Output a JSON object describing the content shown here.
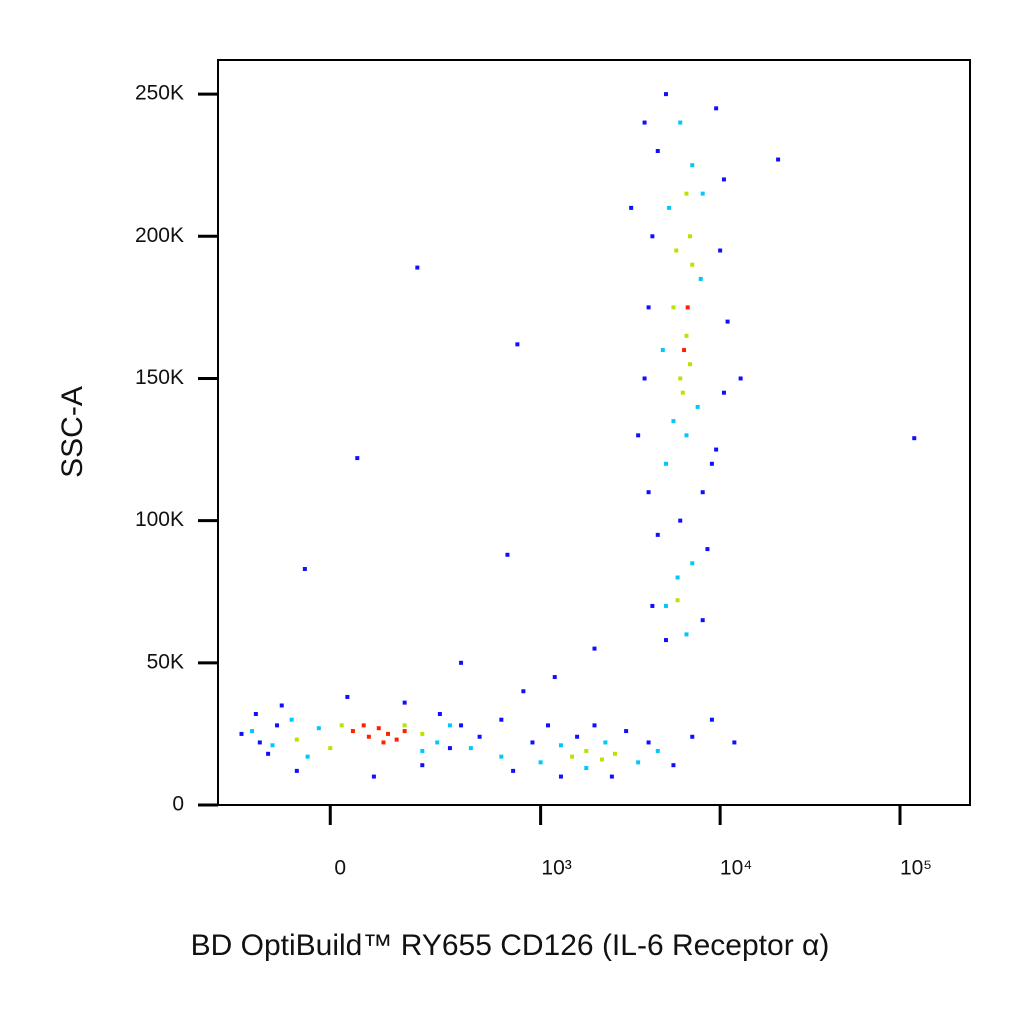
{
  "chart_data": {
    "type": "scatter",
    "x_label": "BD OptiBuild™ RY655 CD126 (IL-6 Receptor α)",
    "y_label": "SSC-A",
    "xscale": "biexponential",
    "xlim": [
      -270,
      245000
    ],
    "ylim": [
      0,
      262000
    ],
    "xticks": [
      0,
      {
        "value": 1000,
        "label": "10³"
      },
      {
        "value": 10000,
        "label": "10⁴"
      },
      {
        "value": 100000,
        "label": "10⁵"
      }
    ],
    "yticks": [
      0,
      {
        "value": 50000,
        "label": "50K"
      },
      {
        "value": 100000,
        "label": "100K"
      },
      {
        "value": 150000,
        "label": "150K"
      },
      {
        "value": 200000,
        "label": "200K"
      },
      {
        "value": 250000,
        "label": "250K"
      }
    ],
    "series": [
      {
        "color": "#1010ff",
        "x": [
          -190,
          -150,
          -120,
          -90,
          -60,
          -140,
          -100,
          30,
          80,
          150,
          200,
          260,
          300,
          350,
          450,
          600,
          700,
          900,
          1100,
          1300,
          1600,
          2000,
          2500,
          3000,
          4000,
          5500,
          7000,
          9000,
          12000,
          1200,
          2000,
          800,
          350,
          5000,
          4200,
          4500,
          8500,
          8000,
          6000,
          4000,
          9000,
          3500,
          3800,
          4000,
          4200,
          3200,
          4500,
          5000,
          9500,
          10500,
          10000,
          11000,
          10500,
          9500,
          8000,
          3800,
          13000,
          21000,
          120000,
          185,
          740,
          48,
          -45,
          650
        ],
        "y": [
          25000,
          32000,
          18000,
          35000,
          12000,
          22000,
          28000,
          38000,
          10000,
          36000,
          14000,
          32000,
          20000,
          28000,
          24000,
          30000,
          12000,
          22000,
          28000,
          10000,
          24000,
          28000,
          10000,
          26000,
          22000,
          14000,
          24000,
          30000,
          22000,
          45000,
          55000,
          40000,
          50000,
          58000,
          70000,
          95000,
          90000,
          65000,
          100000,
          110000,
          120000,
          130000,
          150000,
          175000,
          200000,
          210000,
          230000,
          250000,
          245000,
          220000,
          195000,
          170000,
          145000,
          125000,
          110000,
          240000,
          150000,
          227000,
          129000,
          189000,
          162000,
          122000,
          83000,
          88000
        ]
      },
      {
        "color": "#00c8ff",
        "x": [
          -160,
          -110,
          -70,
          -40,
          -20,
          250,
          300,
          200,
          400,
          600,
          1000,
          1300,
          1800,
          2300,
          3500,
          4500,
          5000,
          5800,
          6500,
          7000,
          5000,
          5500,
          6500,
          7500,
          4800,
          7800,
          5200,
          7000,
          6000,
          8000
        ],
        "y": [
          26000,
          21000,
          30000,
          17000,
          27000,
          22000,
          28000,
          19000,
          20000,
          17000,
          15000,
          21000,
          13000,
          22000,
          15000,
          19000,
          70000,
          80000,
          60000,
          85000,
          120000,
          135000,
          130000,
          140000,
          160000,
          185000,
          210000,
          225000,
          240000,
          215000
        ]
      },
      {
        "color": "#b4e600",
        "x": [
          -60,
          0,
          20,
          150,
          200,
          1500,
          1800,
          2200,
          2600,
          5800,
          6000,
          6500,
          5500,
          7000,
          6800,
          6200,
          6800,
          5700,
          6500
        ],
        "y": [
          23000,
          20000,
          28000,
          28000,
          25000,
          17000,
          19000,
          16000,
          18000,
          72000,
          150000,
          165000,
          175000,
          190000,
          200000,
          145000,
          155000,
          195000,
          215000
        ]
      },
      {
        "color": "#ff2000",
        "x": [
          40,
          70,
          90,
          110,
          130,
          60,
          100,
          150,
          6600,
          6300
        ],
        "y": [
          26000,
          24000,
          27000,
          25000,
          23000,
          28000,
          22000,
          26000,
          175000,
          160000
        ]
      }
    ]
  }
}
